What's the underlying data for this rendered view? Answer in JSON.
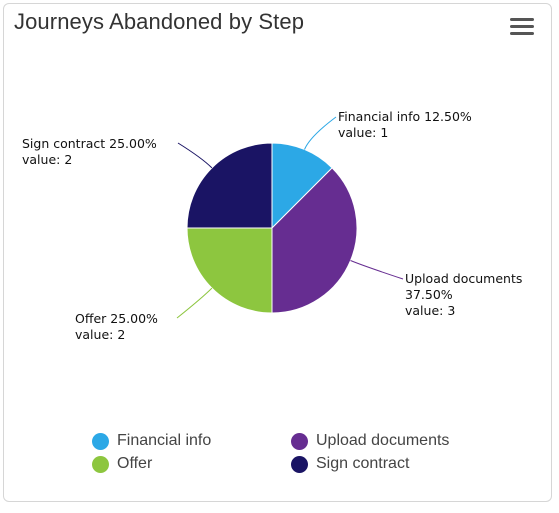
{
  "header": {
    "title": "Journeys Abandoned by Step",
    "menu_icon": "hamburger-menu-icon"
  },
  "chart_data": {
    "type": "pie",
    "title": "Journeys Abandoned by Step",
    "slices": [
      {
        "name": "Financial info",
        "value": 1,
        "percent": "12.50%",
        "color": "#2ca8e6"
      },
      {
        "name": "Upload documents",
        "value": 3,
        "percent": "37.50%",
        "color": "#662d91"
      },
      {
        "name": "Offer",
        "value": 2,
        "percent": "25.00%",
        "color": "#8dc63f"
      },
      {
        "name": "Sign contract",
        "value": 2,
        "percent": "25.00%",
        "color": "#1a1464"
      }
    ],
    "data_labels": [
      {
        "lines": [
          "Financial info 12.50%",
          "value: 1"
        ]
      },
      {
        "lines": [
          "Upload documents",
          "37.50%",
          "value: 3"
        ]
      },
      {
        "lines": [
          "Offer 25.00%",
          "value: 2"
        ]
      },
      {
        "lines": [
          "Sign contract 25.00%",
          "value: 2"
        ]
      }
    ],
    "legend": {
      "placement": "bottom",
      "items": [
        {
          "label": "Financial info",
          "color": "#2ca8e6"
        },
        {
          "label": "Upload documents",
          "color": "#662d91"
        },
        {
          "label": "Offer",
          "color": "#8dc63f"
        },
        {
          "label": "Sign contract",
          "color": "#1a1464"
        }
      ]
    }
  }
}
